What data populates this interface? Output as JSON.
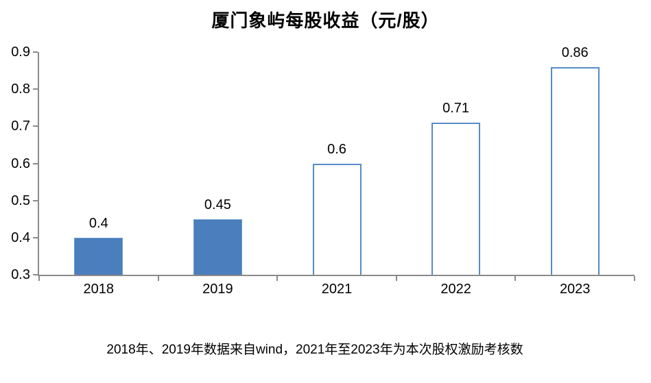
{
  "page": {
    "title": "厦门象屿每股收益（元/股）",
    "footnote": "2018年、2019年数据来自wind，2021年至2023年为本次股权激励考核数"
  },
  "colors": {
    "bar_fill": "#4a7ebc",
    "bar_fill_edge": "#6f9ccc",
    "bar_outline": "#558bc8",
    "axis": "#8a8a8a",
    "text": "#000000",
    "background": "#ffffff"
  },
  "chart_data": {
    "type": "bar",
    "title": "厦门象屿每股收益（元/股）",
    "categories": [
      "2018",
      "2019",
      "2021",
      "2022",
      "2023"
    ],
    "values": [
      0.4,
      0.45,
      0.6,
      0.71,
      0.86
    ],
    "data_labels": [
      "0.4",
      "0.45",
      "0.6",
      "0.71",
      "0.86"
    ],
    "bar_styles": [
      "solid",
      "solid",
      "outline",
      "outline",
      "outline"
    ],
    "xlabel": "",
    "ylabel": "",
    "ylim": [
      0.3,
      0.9
    ],
    "ytick_step": 0.1,
    "ytick_labels": [
      "0.3",
      "0.4",
      "0.5",
      "0.6",
      "0.7",
      "0.8",
      "0.9"
    ],
    "grid": false,
    "legend": "none",
    "annotation": "2018年、2019年数据来自wind，2021年至2023年为本次股权激励考核数"
  }
}
